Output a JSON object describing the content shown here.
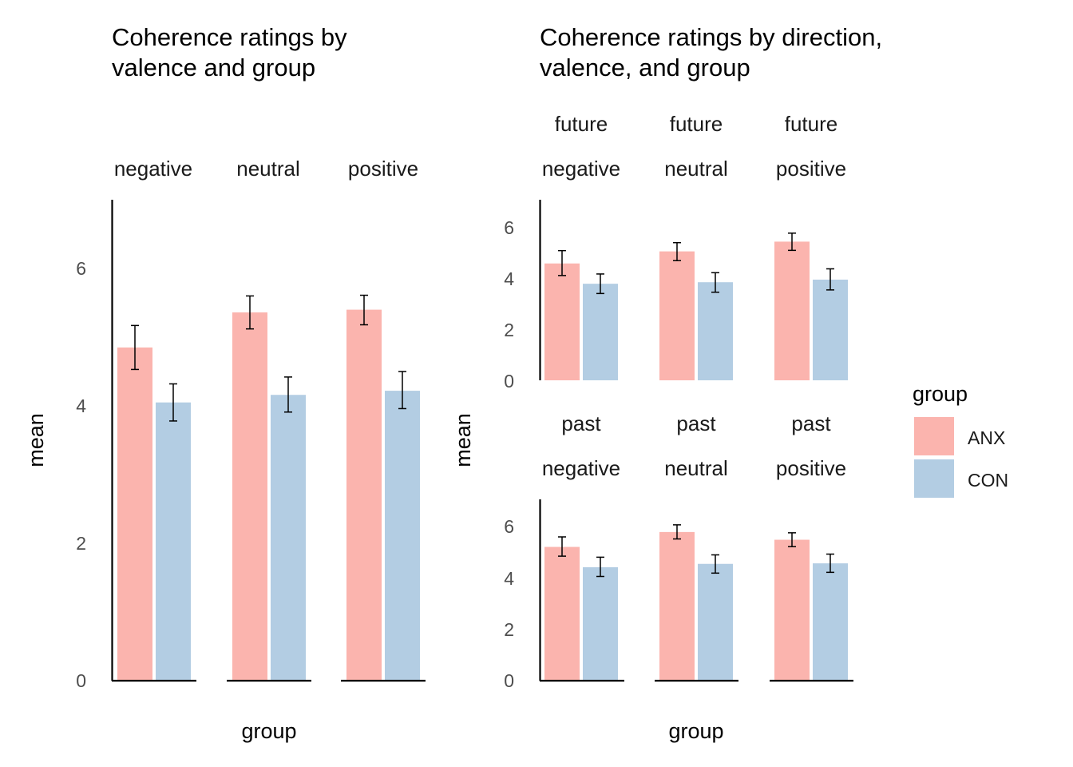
{
  "colors": {
    "ANX": "#fbb4ae",
    "CON": "#b3cde3",
    "axis": "#000000",
    "tick_text": "#4d4d4d"
  },
  "legend": {
    "title": "group",
    "entries": [
      {
        "key": "ANX",
        "label": "ANX"
      },
      {
        "key": "CON",
        "label": "CON"
      }
    ]
  },
  "chart_data": [
    {
      "type": "bar",
      "title_lines": [
        "Coherence ratings by",
        "valence and group"
      ],
      "xlabel": "group",
      "ylabel": "mean",
      "ylim": [
        0,
        7
      ],
      "yticks": [
        0,
        2,
        4,
        6
      ],
      "facets": [
        {
          "strips": [
            "negative"
          ],
          "bars": [
            {
              "group": "ANX",
              "mean": 4.85,
              "lo": 4.53,
              "hi": 5.17
            },
            {
              "group": "CON",
              "mean": 4.05,
              "lo": 3.78,
              "hi": 4.32
            }
          ]
        },
        {
          "strips": [
            "neutral"
          ],
          "bars": [
            {
              "group": "ANX",
              "mean": 5.36,
              "lo": 5.12,
              "hi": 5.6
            },
            {
              "group": "CON",
              "mean": 4.16,
              "lo": 3.91,
              "hi": 4.42
            }
          ]
        },
        {
          "strips": [
            "positive"
          ],
          "bars": [
            {
              "group": "ANX",
              "mean": 5.4,
              "lo": 5.18,
              "hi": 5.61
            },
            {
              "group": "CON",
              "mean": 4.22,
              "lo": 3.96,
              "hi": 4.5
            }
          ]
        }
      ]
    },
    {
      "type": "bar",
      "title_lines": [
        "Coherence ratings by direction,",
        "valence, and group"
      ],
      "xlabel": "group",
      "ylabel": "mean",
      "ylim": [
        0,
        7
      ],
      "yticks": [
        0,
        2,
        4,
        6
      ],
      "rows": [
        {
          "facets": [
            {
              "strips": [
                "future",
                "negative"
              ],
              "bars": [
                {
                  "group": "ANX",
                  "mean": 4.55,
                  "lo": 4.08,
                  "hi": 5.05
                },
                {
                  "group": "CON",
                  "mean": 3.76,
                  "lo": 3.38,
                  "hi": 4.14
                }
              ]
            },
            {
              "strips": [
                "future",
                "neutral"
              ],
              "bars": [
                {
                  "group": "ANX",
                  "mean": 5.02,
                  "lo": 4.66,
                  "hi": 5.36
                },
                {
                  "group": "CON",
                  "mean": 3.82,
                  "lo": 3.43,
                  "hi": 4.19
                }
              ]
            },
            {
              "strips": [
                "future",
                "positive"
              ],
              "bars": [
                {
                  "group": "ANX",
                  "mean": 5.4,
                  "lo": 5.06,
                  "hi": 5.73
                },
                {
                  "group": "CON",
                  "mean": 3.92,
                  "lo": 3.52,
                  "hi": 4.34
                }
              ]
            }
          ]
        },
        {
          "facets": [
            {
              "strips": [
                "past",
                "negative"
              ],
              "bars": [
                {
                  "group": "ANX",
                  "mean": 5.21,
                  "lo": 4.85,
                  "hi": 5.6
                },
                {
                  "group": "CON",
                  "mean": 4.42,
                  "lo": 4.06,
                  "hi": 4.81
                }
              ]
            },
            {
              "strips": [
                "past",
                "neutral"
              ],
              "bars": [
                {
                  "group": "ANX",
                  "mean": 5.79,
                  "lo": 5.52,
                  "hi": 6.07
                },
                {
                  "group": "CON",
                  "mean": 4.55,
                  "lo": 4.19,
                  "hi": 4.9
                }
              ]
            },
            {
              "strips": [
                "past",
                "positive"
              ],
              "bars": [
                {
                  "group": "ANX",
                  "mean": 5.49,
                  "lo": 5.22,
                  "hi": 5.76
                },
                {
                  "group": "CON",
                  "mean": 4.57,
                  "lo": 4.22,
                  "hi": 4.93
                }
              ]
            }
          ]
        }
      ]
    }
  ]
}
